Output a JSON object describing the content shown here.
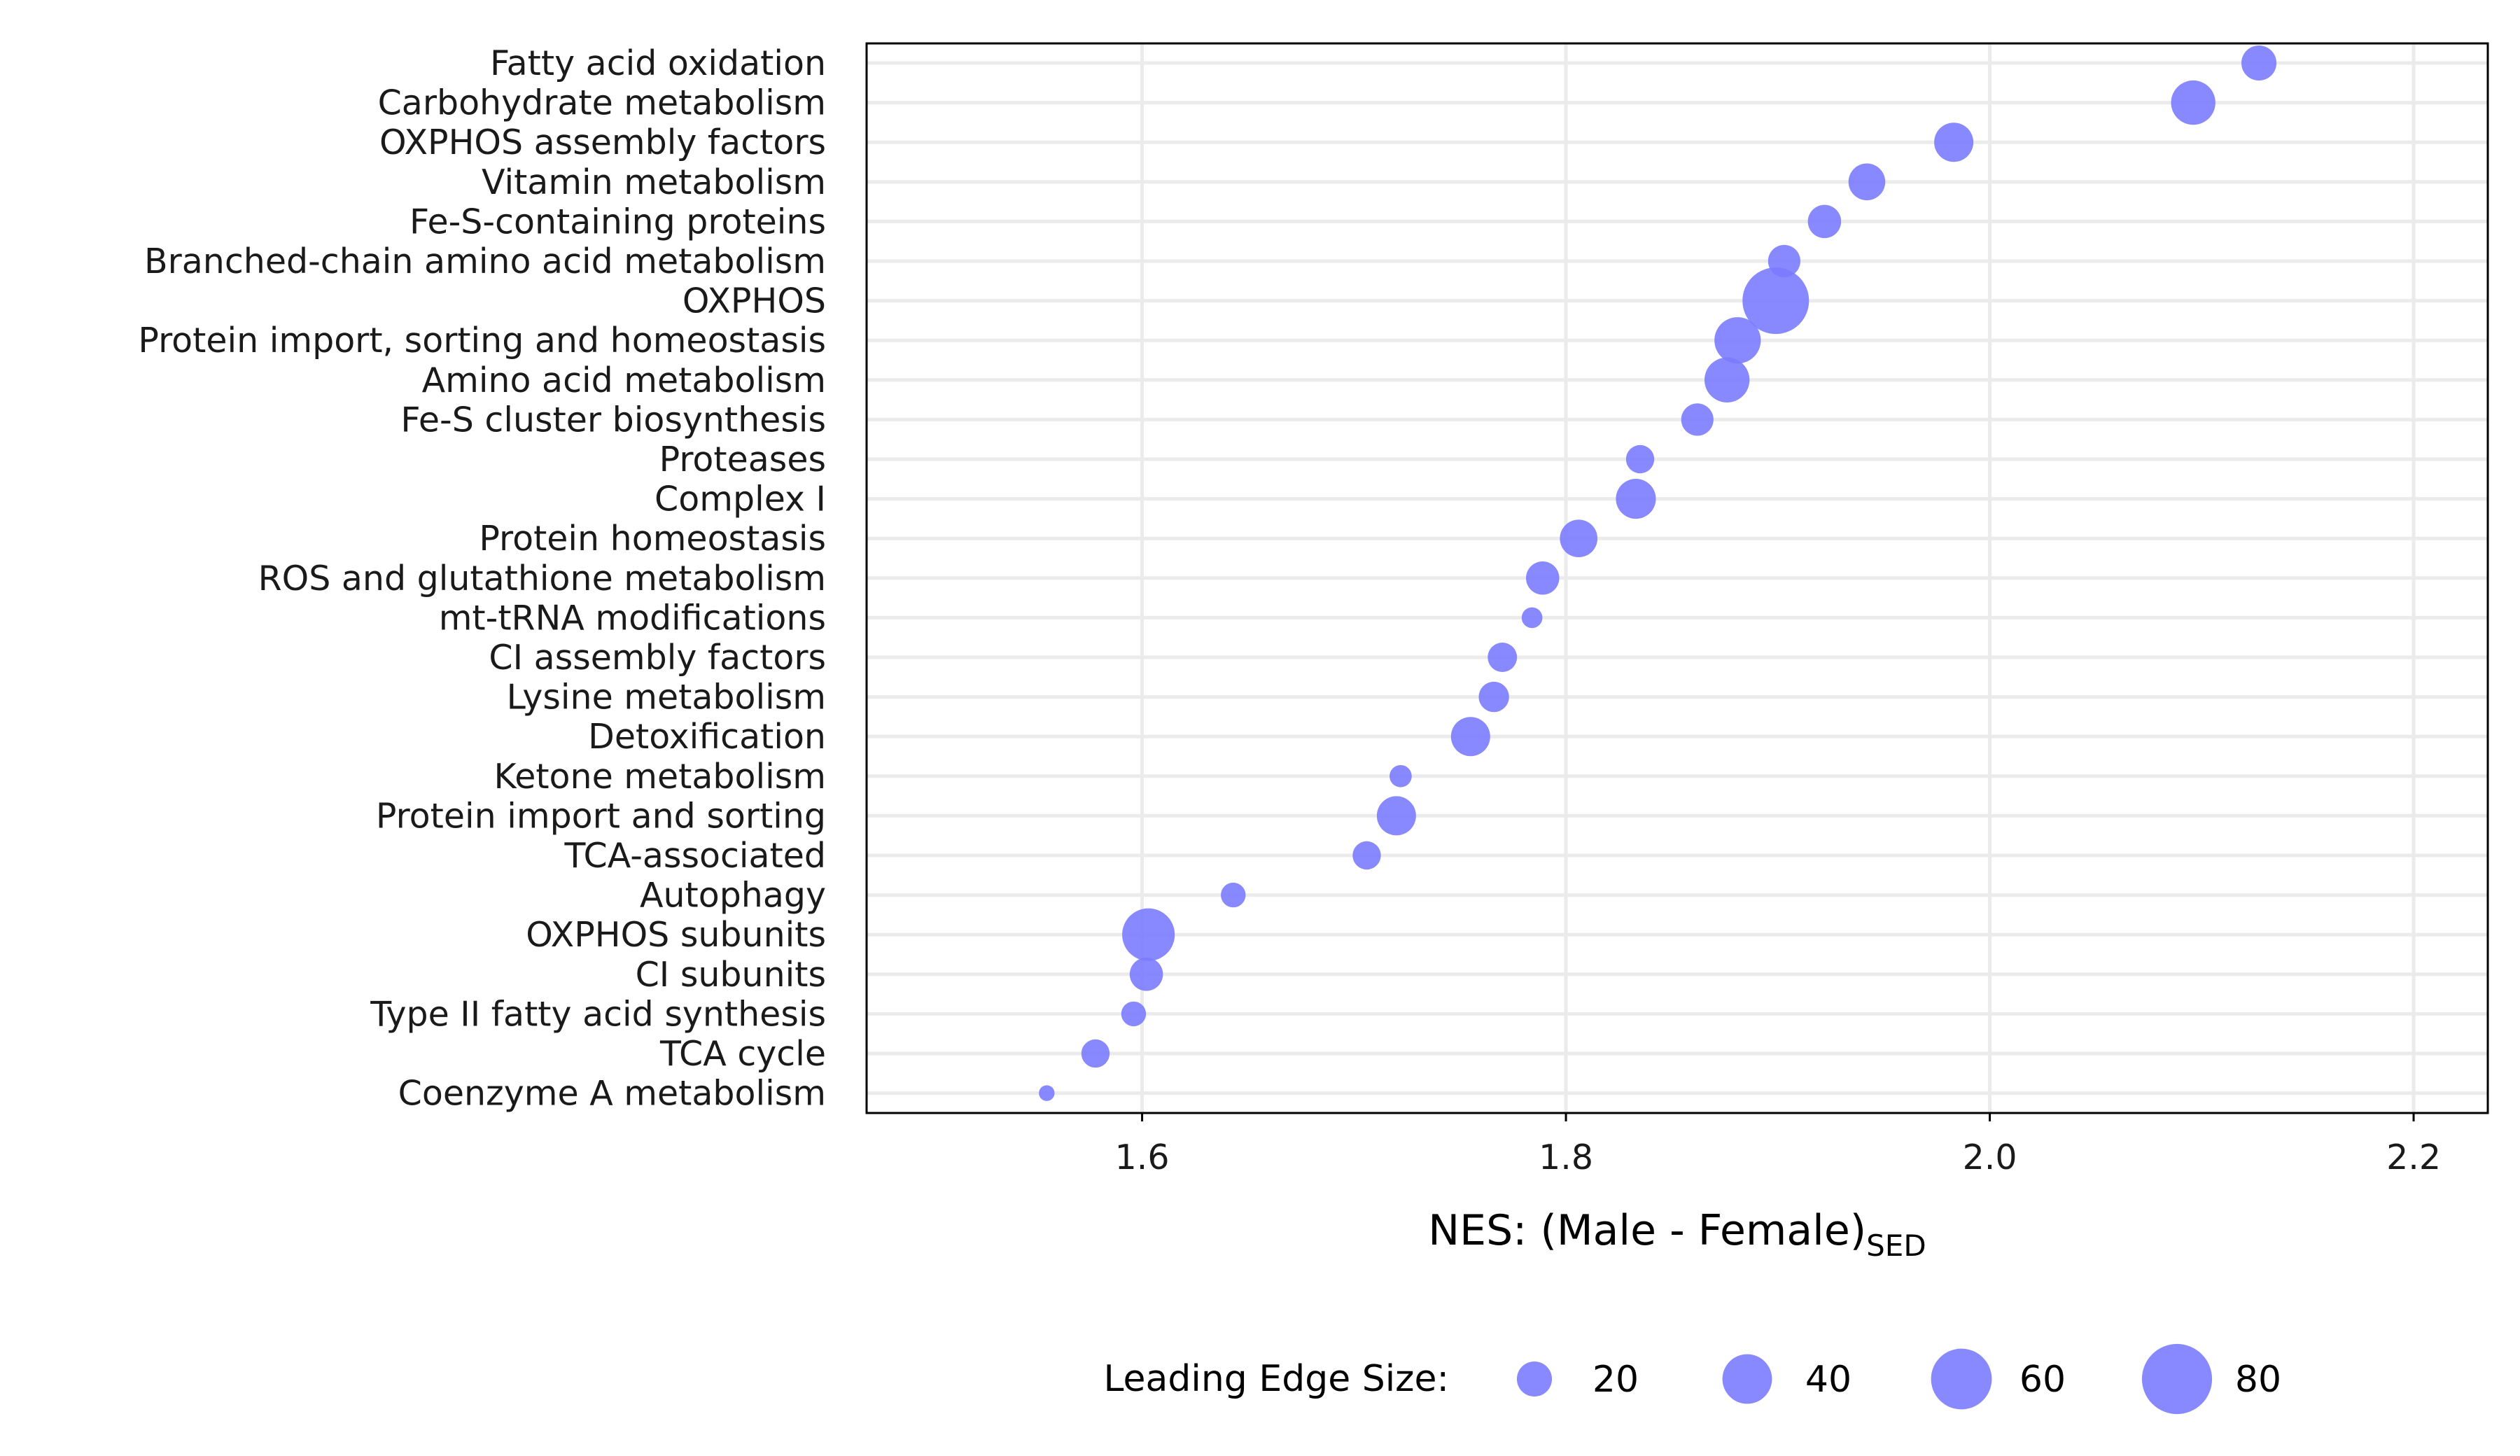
{
  "chart_data": {
    "type": "scatter",
    "categories": [
      "Fatty acid oxidation",
      "Carbohydrate metabolism",
      "OXPHOS assembly factors",
      "Vitamin metabolism",
      "Fe-S-containing proteins",
      "Branched-chain amino acid metabolism",
      "OXPHOS",
      "Protein import, sorting and homeostasis",
      "Amino acid metabolism",
      "Fe-S cluster biosynthesis",
      "Proteases",
      "Complex I",
      "Protein homeostasis",
      "ROS and glutathione metabolism",
      "mt-tRNA modifications",
      "CI assembly factors",
      "Lysine metabolism",
      "Detoxification",
      "Ketone metabolism",
      "Protein import and sorting",
      "TCA-associated",
      "Autophagy",
      "OXPHOS subunits",
      "CI subunits",
      "Type II fatty acid synthesis",
      "TCA cycle",
      "Coenzyme A metabolism"
    ],
    "x": [
      2.127,
      2.096,
      1.983,
      1.942,
      1.922,
      1.903,
      1.899,
      1.881,
      1.876,
      1.862,
      1.835,
      1.833,
      1.806,
      1.789,
      1.784,
      1.77,
      1.766,
      1.755,
      1.722,
      1.72,
      1.706,
      1.643,
      1.603,
      1.602,
      1.596,
      1.578,
      1.555
    ],
    "sizes": [
      20,
      32,
      25,
      22,
      18,
      17,
      72,
      35,
      33,
      17,
      13,
      26,
      23,
      18,
      7,
      14,
      15,
      25,
      8,
      25,
      13,
      10,
      45,
      18,
      10,
      13,
      4
    ],
    "xlabel": "NES: (Male - Female)",
    "xlabel_subscript": "SED",
    "xlim": [
      1.47,
      2.235
    ],
    "xticks": [
      1.6,
      1.8,
      2.0,
      2.2
    ],
    "xtick_labels": [
      "1.6",
      "1.8",
      "2.0",
      "2.2"
    ],
    "grid": true,
    "legend": {
      "title": "Leading Edge Size:",
      "placement": "bottom",
      "entries": [
        {
          "label": "20",
          "size": 20
        },
        {
          "label": "40",
          "size": 40
        },
        {
          "label": "60",
          "size": 60
        },
        {
          "label": "80",
          "size": 80
        }
      ]
    },
    "colors": {
      "point": "#7b7bff",
      "grid": "#ebebeb",
      "axis": "#000000"
    }
  }
}
